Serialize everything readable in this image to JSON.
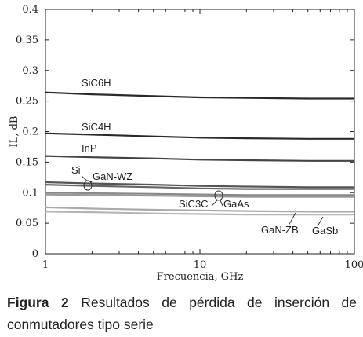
{
  "chart_data": {
    "type": "line",
    "x_scale": "log",
    "xlim": [
      1,
      100
    ],
    "ylim": [
      0,
      0.4
    ],
    "xlabel": "Frecuencia, GHz",
    "ylabel": "IL, dB",
    "x_ticks": [
      1,
      10,
      100
    ],
    "x_tick_labels": [
      "1",
      "10",
      "100"
    ],
    "y_ticks": [
      0,
      0.05,
      0.1,
      0.15,
      0.2,
      0.25,
      0.3,
      0.35,
      0.4
    ],
    "y_tick_labels": [
      "0",
      "0.05",
      "0.1",
      "0.15",
      "0.2",
      "0.25",
      "0.3",
      "0.35",
      "0.4"
    ],
    "grid": false,
    "series": [
      {
        "name": "SiC6H",
        "x": [
          1,
          2,
          5,
          10,
          20,
          50,
          100
        ],
        "y": [
          0.264,
          0.261,
          0.258,
          0.256,
          0.255,
          0.254,
          0.254
        ],
        "color": "#2a2a2a"
      },
      {
        "name": "SiC4H",
        "x": [
          1,
          2,
          5,
          10,
          20,
          50,
          100
        ],
        "y": [
          0.197,
          0.195,
          0.192,
          0.19,
          0.189,
          0.188,
          0.188
        ],
        "color": "#2a2a2a"
      },
      {
        "name": "InP",
        "x": [
          1,
          2,
          5,
          10,
          20,
          50,
          100
        ],
        "y": [
          0.16,
          0.158,
          0.156,
          0.154,
          0.153,
          0.152,
          0.152
        ],
        "color": "#444444"
      },
      {
        "name": "Si",
        "x": [
          1,
          2,
          5,
          10,
          20,
          50,
          100
        ],
        "y": [
          0.117,
          0.115,
          0.113,
          0.111,
          0.11,
          0.109,
          0.109
        ],
        "color": "#555555"
      },
      {
        "name": "GaN-WZ",
        "x": [
          1,
          2,
          5,
          10,
          20,
          50,
          100
        ],
        "y": [
          0.113,
          0.111,
          0.109,
          0.107,
          0.106,
          0.106,
          0.106
        ],
        "color": "#666666"
      },
      {
        "name": "SiC3C",
        "x": [
          1,
          2,
          5,
          10,
          20,
          50,
          100
        ],
        "y": [
          0.1,
          0.099,
          0.098,
          0.097,
          0.096,
          0.096,
          0.096
        ],
        "color": "#888888"
      },
      {
        "name": "GaAs",
        "x": [
          1,
          2,
          5,
          10,
          20,
          50,
          100
        ],
        "y": [
          0.097,
          0.096,
          0.095,
          0.094,
          0.093,
          0.093,
          0.093
        ],
        "color": "#999999"
      },
      {
        "name": "GaN-ZB",
        "x": [
          1,
          2,
          5,
          10,
          20,
          50,
          100
        ],
        "y": [
          0.076,
          0.074,
          0.072,
          0.071,
          0.07,
          0.069,
          0.069
        ],
        "color": "#aaaaaa"
      },
      {
        "name": "GaSb",
        "x": [
          1,
          2,
          5,
          10,
          20,
          50,
          100
        ],
        "y": [
          0.069,
          0.068,
          0.066,
          0.065,
          0.064,
          0.064,
          0.064
        ],
        "color": "#b5b5b5"
      }
    ],
    "annotations": [
      {
        "text": "SiC6H"
      },
      {
        "text": "SiC4H"
      },
      {
        "text": "InP"
      },
      {
        "text": "Si"
      },
      {
        "text": "GaN-WZ"
      },
      {
        "text": "SiC3C"
      },
      {
        "text": "GaAs"
      },
      {
        "text": "GaN-ZB"
      },
      {
        "text": "GaSb"
      }
    ]
  },
  "caption": {
    "label": "Figura 2",
    "text": "Resultados de pérdida de inserción de conmutadores tipo serie"
  }
}
